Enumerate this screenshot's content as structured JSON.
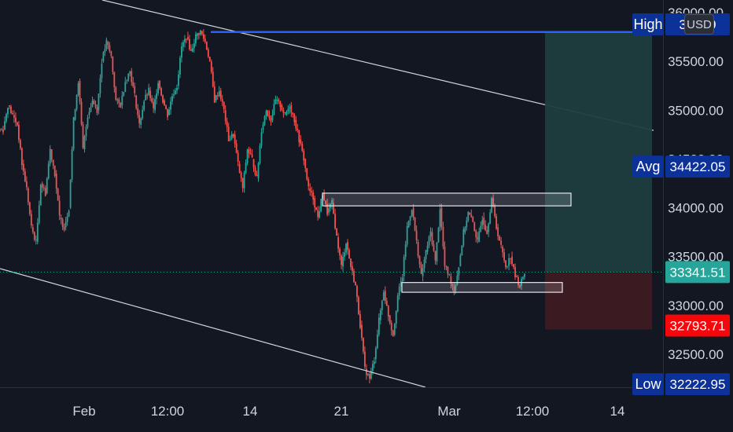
{
  "currency_badge": "USD",
  "colors": {
    "background": "#131722",
    "up": "#26a69a",
    "down": "#ef5350",
    "wick_neutral": "#787b86",
    "high_line": "#2962ff",
    "tag_navy": "#0c3299",
    "tag_current": "#26a69a",
    "tag_stop": "#f7070b",
    "target_zone": "#1d3d3f",
    "stop_zone": "#3d1a22"
  },
  "tags": {
    "high_label": "High",
    "high_value": "35809",
    "avg_label": "Avg",
    "avg_value": "34422.05",
    "current_value": "33341.51",
    "stop_value": "32793.71",
    "low_label": "Low",
    "low_value": "32222.95"
  },
  "chart_data": {
    "type": "candlestick",
    "y_axis": {
      "ticks": [
        "36000.00",
        "35500.00",
        "35000.00",
        "34500.00",
        "34000.00",
        "33500.00",
        "33000.00",
        "32500.00"
      ],
      "tick_values": [
        36000,
        35500,
        35000,
        34500,
        34000,
        33500,
        33000,
        32500
      ],
      "range": [
        32150,
        36060
      ]
    },
    "x_axis": {
      "ticks": [
        "Feb",
        "12:00",
        "14",
        "21",
        "Mar",
        "12:00",
        "14"
      ]
    },
    "series_path": [
      34800,
      35050,
      34950,
      34850,
      34450,
      34200,
      33800,
      33650,
      34250,
      34150,
      34600,
      34350,
      33900,
      33800,
      34000,
      34900,
      35300,
      34600,
      34950,
      35100,
      35000,
      35500,
      35700,
      35550,
      35100,
      35050,
      35300,
      35400,
      35150,
      34850,
      35100,
      35200,
      35000,
      35300,
      35100,
      34950,
      35150,
      35250,
      35650,
      35750,
      35600,
      35760,
      35810,
      35700,
      35500,
      35100,
      35200,
      35000,
      34700,
      34750,
      34450,
      34200,
      34600,
      34500,
      34300,
      34800,
      35000,
      34900,
      35100,
      35050,
      34950,
      35050,
      34900,
      34700,
      34500,
      34200,
      34100,
      33900,
      34150,
      33950,
      34050,
      33700,
      33400,
      33650,
      33400,
      33200,
      32800,
      32350,
      32250,
      32450,
      32850,
      33150,
      32900,
      32700,
      33100,
      33300,
      33800,
      34000,
      33650,
      33300,
      33550,
      33750,
      33450,
      34000,
      33400,
      33300,
      33150,
      33400,
      33750,
      33950,
      33850,
      33650,
      33900,
      33750,
      34100,
      33800,
      33600,
      33400,
      33500,
      33300,
      33200,
      33341.51
    ],
    "levels": {
      "high": 35809,
      "avg": 34422.05,
      "current": 33341.51,
      "stop": 32793.71,
      "low": 32222.95
    },
    "zones": [
      {
        "name": "resistance",
        "top": 34150,
        "bottom": 34020
      },
      {
        "name": "support",
        "top": 33235,
        "bottom": 33135
      }
    ],
    "position": {
      "entry": 33341.51,
      "target": 35809,
      "stop": 32793.71
    },
    "grid": false
  }
}
